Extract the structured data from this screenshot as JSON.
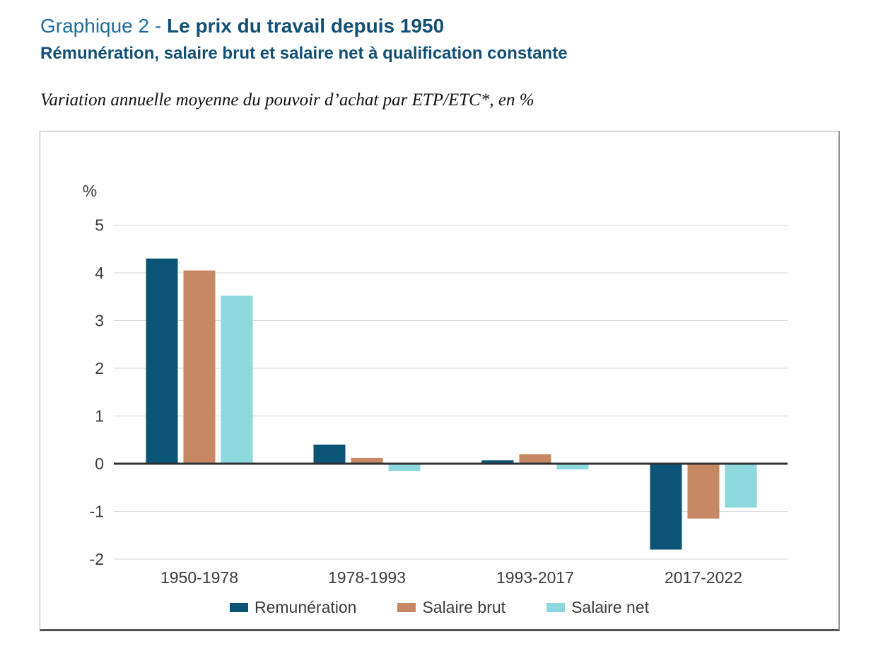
{
  "header": {
    "prefix": "Graphique 2 - ",
    "title_bold": "Le prix du travail depuis 1950",
    "subtitle": "Rémunération, salaire brut et salaire net à qualification constante",
    "title_color": "#124f74",
    "prefix_color": "#1e6d9c"
  },
  "note": "Variation annuelle moyenne du pouvoir d’achat par ETP/ETC*, en %",
  "chart_data": {
    "type": "bar",
    "title": "Le prix du travail depuis 1950",
    "categories": [
      "1950-1978",
      "1978-1993",
      "1993-2017",
      "2017-2022"
    ],
    "series": [
      {
        "name": "Remunération",
        "color": "#0b5475",
        "values": [
          4.3,
          0.4,
          0.07,
          -1.8
        ]
      },
      {
        "name": "Salaire brut",
        "color": "#c68764",
        "values": [
          4.05,
          0.12,
          0.2,
          -1.15
        ]
      },
      {
        "name": "Salaire net",
        "color": "#8cd8dd",
        "values": [
          3.52,
          -0.15,
          -0.12,
          -0.92
        ]
      }
    ],
    "xlabel": "",
    "ylabel": "%",
    "ylim": [
      -2,
      5
    ],
    "yticks": [
      5,
      4,
      3,
      2,
      1,
      0,
      -1,
      -2
    ],
    "grid": true,
    "gridline_color": "#d9d9d9",
    "zero_line_color": "#2d3033",
    "tick_label_color": "#3c3c3c",
    "legend_position": "bottom"
  }
}
